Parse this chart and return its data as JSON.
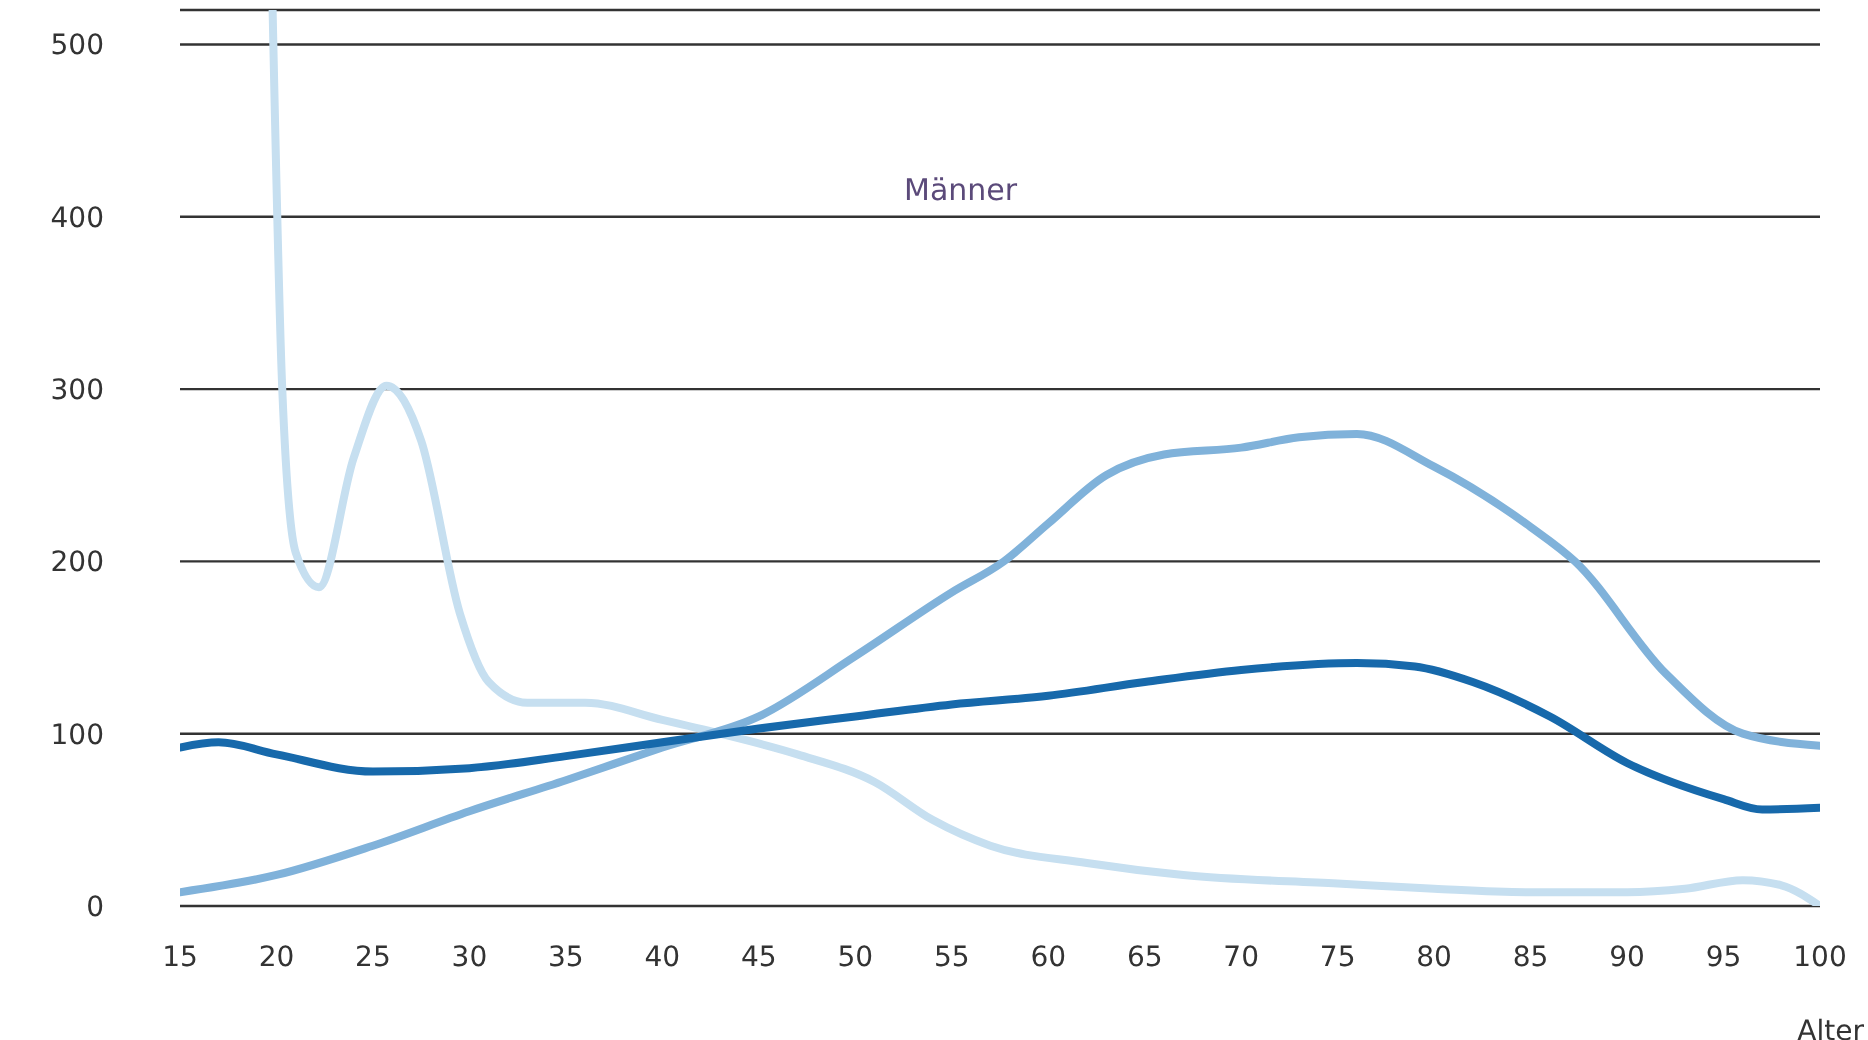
{
  "chart_data": {
    "type": "line",
    "xlabel": "Alter",
    "annotations": [
      "Männer"
    ],
    "xlim": [
      15,
      100
    ],
    "xticks": [
      15,
      20,
      25,
      30,
      35,
      40,
      45,
      50,
      55,
      60,
      65,
      70,
      75,
      80,
      85,
      90,
      95,
      100
    ],
    "ylim": [
      0,
      520
    ],
    "yticks": [
      0,
      100,
      200,
      300,
      400,
      500
    ],
    "grid": "y",
    "marker": "none",
    "line_style": "solid",
    "series": [
      {
        "color": "#c6dff0",
        "x": [
          19.8,
          20.3,
          21,
          22.2,
          24,
          25.7,
          27.5,
          29.5,
          31,
          33,
          36,
          40,
          43,
          47,
          51,
          54,
          57,
          62,
          67,
          75,
          80,
          85,
          90,
          93,
          96,
          98,
          100
        ],
        "values": [
          520,
          300,
          205,
          185,
          260,
          302,
          270,
          170,
          130,
          118,
          118,
          108,
          100,
          88,
          72,
          50,
          35,
          25,
          18,
          13,
          10,
          8,
          8,
          10,
          15,
          12,
          0
        ]
      },
      {
        "color": "#80b2da",
        "x": [
          15,
          20,
          25,
          30,
          35,
          40,
          45,
          50,
          55,
          57.7,
          60,
          63,
          66,
          70,
          73,
          76,
          80,
          85,
          87.3,
          92,
          96,
          100
        ],
        "values": [
          8,
          18,
          35,
          55,
          73,
          92,
          110,
          145,
          182,
          200,
          222,
          250,
          262,
          266,
          272,
          274,
          255,
          220,
          200,
          135,
          100,
          93
        ]
      },
      {
        "color": "#1769ab",
        "x": [
          15,
          17,
          20,
          25,
          30,
          35,
          40,
          45,
          50,
          55,
          60,
          65,
          70,
          76,
          79,
          82,
          86,
          90,
          95,
          97,
          100
        ],
        "values": [
          92,
          95,
          88,
          78,
          80,
          87,
          95,
          103,
          110,
          117,
          122,
          130,
          137,
          141,
          139,
          130,
          110,
          83,
          62,
          56,
          57
        ]
      }
    ]
  }
}
